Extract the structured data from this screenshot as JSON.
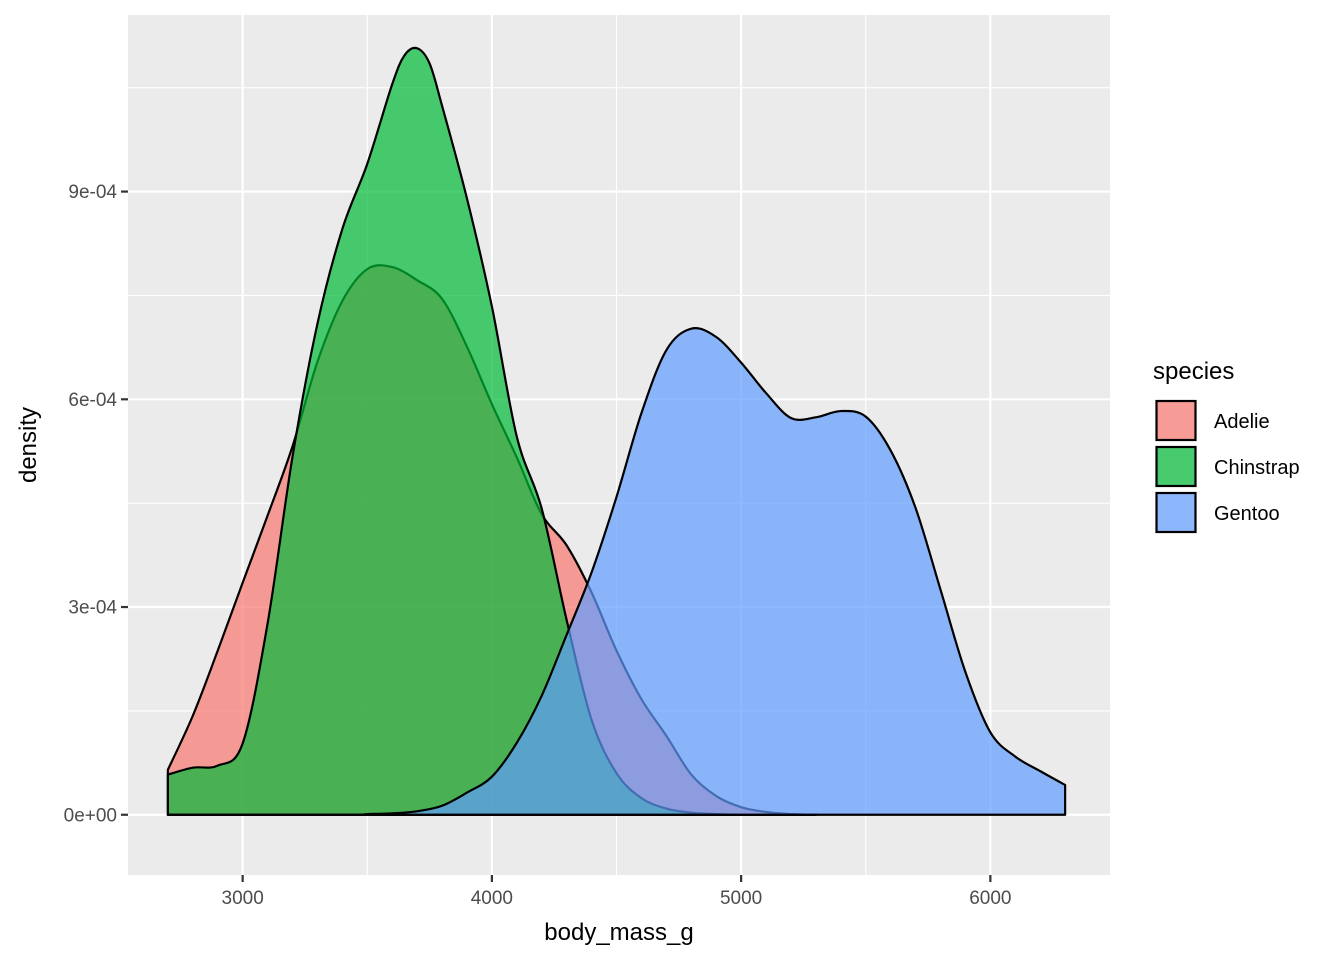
{
  "chart_data": {
    "type": "area",
    "subtype": "density",
    "xlabel": "body_mass_g",
    "ylabel": "density",
    "xlim": [
      2540,
      6480
    ],
    "ylim": [
      -8.7e-05,
      0.001155
    ],
    "x_ticks": [
      3000,
      4000,
      5000,
      6000
    ],
    "x_tick_labels": [
      "3000",
      "4000",
      "5000",
      "6000"
    ],
    "y_ticks": [
      0,
      0.0003,
      0.0006,
      0.0009
    ],
    "y_tick_labels": [
      "0e+00",
      "3e-04",
      "6e-04",
      "9e-04"
    ],
    "grid": true,
    "fill_opacity": 0.7,
    "legend": {
      "title": "species",
      "position": "right",
      "entries": [
        "Adelie",
        "Chinstrap",
        "Gentoo"
      ]
    },
    "series": [
      {
        "name": "Adelie",
        "color": "#F8766D",
        "points": [
          [
            2700,
            6.5e-05
          ],
          [
            2800,
            0.000143
          ],
          [
            2900,
            0.000237
          ],
          [
            3000,
            0.000335
          ],
          [
            3100,
            0.000432
          ],
          [
            3200,
            0.000532
          ],
          [
            3300,
            0.000654
          ],
          [
            3400,
            0.000742
          ],
          [
            3500,
            0.000788
          ],
          [
            3600,
            0.000791
          ],
          [
            3700,
            0.000772
          ],
          [
            3800,
            0.000745
          ],
          [
            3900,
            0.000676
          ],
          [
            4000,
            0.000593
          ],
          [
            4100,
            0.000516
          ],
          [
            4200,
            0.000434
          ],
          [
            4300,
            0.000389
          ],
          [
            4400,
            0.000321
          ],
          [
            4500,
            0.000237
          ],
          [
            4600,
            0.000167
          ],
          [
            4700,
            0.000114
          ],
          [
            4800,
            5.8e-05
          ],
          [
            4900,
            2.7e-05
          ],
          [
            5000,
            1.1e-05
          ],
          [
            5100,
            4e-06
          ],
          [
            5200,
            1e-06
          ],
          [
            5300,
            0
          ]
        ]
      },
      {
        "name": "Chinstrap",
        "color": "#00BA38",
        "points": [
          [
            2700,
            5.8e-05
          ],
          [
            2800,
            6.8e-05
          ],
          [
            2900,
            7.1e-05
          ],
          [
            3000,
            0.000103
          ],
          [
            3100,
            0.000276
          ],
          [
            3200,
            0.000517
          ],
          [
            3300,
            0.000709
          ],
          [
            3400,
            0.000846
          ],
          [
            3500,
            0.00094
          ],
          [
            3600,
            0.001055
          ],
          [
            3650,
            0.001097
          ],
          [
            3700,
            0.001107
          ],
          [
            3750,
            0.001085
          ],
          [
            3800,
            0.001024
          ],
          [
            3900,
            0.00089
          ],
          [
            4000,
            0.000734
          ],
          [
            4100,
            0.000546
          ],
          [
            4200,
            0.000442
          ],
          [
            4300,
            0.000281
          ],
          [
            4400,
            0.000137
          ],
          [
            4500,
            6e-05
          ],
          [
            4600,
            2.4e-05
          ],
          [
            4700,
            9e-06
          ],
          [
            4800,
            3e-06
          ],
          [
            4900,
            1e-06
          ],
          [
            5000,
            0
          ],
          [
            5100,
            0
          ],
          [
            5200,
            0
          ],
          [
            5300,
            0
          ]
        ]
      },
      {
        "name": "Gentoo",
        "color": "#619CFF",
        "points": [
          [
            2700,
            0
          ],
          [
            3400,
            0
          ],
          [
            3500,
            1e-06
          ],
          [
            3600,
            2e-06
          ],
          [
            3700,
            5e-06
          ],
          [
            3800,
            1.3e-05
          ],
          [
            3900,
            3.2e-05
          ],
          [
            4000,
            5.5e-05
          ],
          [
            4100,
            0.000104
          ],
          [
            4200,
            0.000172
          ],
          [
            4300,
            0.00026
          ],
          [
            4400,
            0.00035
          ],
          [
            4500,
            0.000459
          ],
          [
            4600,
            0.00058
          ],
          [
            4700,
            0.000671
          ],
          [
            4800,
            0.000702
          ],
          [
            4900,
            0.00069
          ],
          [
            5000,
            0.000653
          ],
          [
            5100,
            0.000609
          ],
          [
            5200,
            0.000573
          ],
          [
            5300,
            0.000574
          ],
          [
            5400,
            0.000583
          ],
          [
            5500,
            0.000575
          ],
          [
            5600,
            0.000526
          ],
          [
            5700,
            0.000443
          ],
          [
            5800,
            0.000325
          ],
          [
            5900,
            0.000206
          ],
          [
            6000,
            0.000119
          ],
          [
            6100,
            8.4e-05
          ],
          [
            6200,
            6.3e-05
          ],
          [
            6300,
            4.3e-05
          ]
        ]
      }
    ]
  }
}
